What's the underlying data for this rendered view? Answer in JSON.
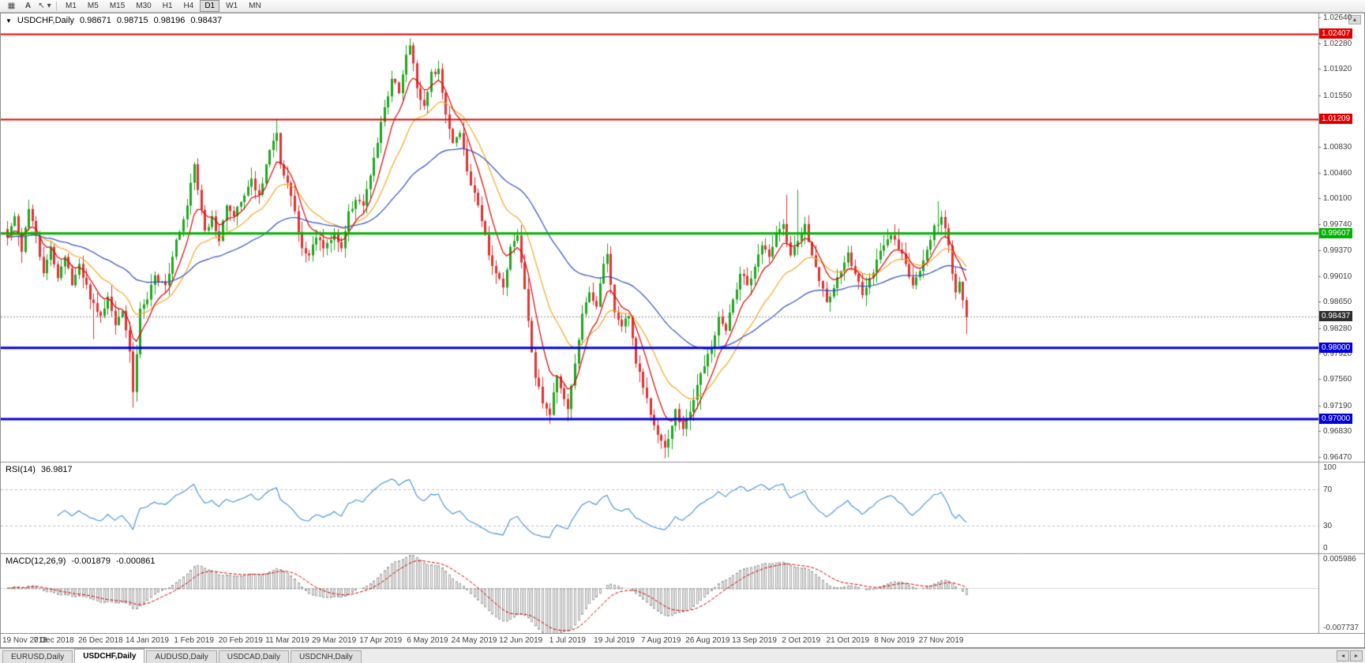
{
  "toolbar": {
    "tools": [
      {
        "name": "market-watch-grid-icon",
        "icon": "▦"
      },
      {
        "name": "text-tool-icon",
        "icon": "A"
      },
      {
        "name": "cursor-tool-icon",
        "icon": "↖",
        "caret": "▾"
      }
    ],
    "timeframes": [
      "M1",
      "M5",
      "M15",
      "M30",
      "H1",
      "H4",
      "D1",
      "W1",
      "MN"
    ],
    "active_timeframe": "D1"
  },
  "chart_header": {
    "collapse_icon": "▼",
    "symbol": "USDCHF,Daily",
    "open": "0.98671",
    "high": "0.98715",
    "low": "0.98196",
    "close": "0.98437"
  },
  "price_axis": {
    "ticks": [
      "1.02640",
      "1.02280",
      "1.01920",
      "1.01550",
      "1.01190",
      "1.00830",
      "1.00460",
      "1.00100",
      "0.99740",
      "0.99370",
      "0.99010",
      "0.98650",
      "0.98280",
      "0.97920",
      "0.97560",
      "0.97190",
      "0.96830",
      "0.96470"
    ],
    "current_price": "0.98437",
    "current_price_bg": "#2e2e2e"
  },
  "indicators": {
    "rsi": {
      "name": "RSI(14)",
      "value": "36.9817",
      "period": 14,
      "axis_labels": [
        "100",
        "70",
        "30",
        "0"
      ],
      "levels": [
        70,
        30
      ],
      "line_color": "#3e8ede"
    },
    "macd": {
      "name": "MACD(12,26,9)",
      "value_main": "-0.001879",
      "value_signal": "-0.000861",
      "params": [
        12,
        26,
        9
      ],
      "axis_top": "0.005986",
      "axis_bottom": "-0.007737",
      "histogram_color": "#a6a6a6",
      "signal_color": "#d00000"
    }
  },
  "chart_data": {
    "type": "candlestick",
    "title": "USDCHF Daily",
    "ylim": [
      0.964,
      1.027
    ],
    "x_labels": [
      "19 Nov 2018",
      "7 Dec 2018",
      "26 Dec 2018",
      "14 Jan 2019",
      "1 Feb 2019",
      "20 Feb 2019",
      "11 Mar 2019",
      "29 Mar 2019",
      "17 Apr 2019",
      "6 May 2019",
      "24 May 2019",
      "12 Jun 2019",
      "1 Jul 2019",
      "19 Jul 2019",
      "7 Aug 2019",
      "26 Aug 2019",
      "13 Sep 2019",
      "2 Oct 2019",
      "21 Oct 2019",
      "8 Nov 2019",
      "27 Nov 2019"
    ],
    "candles_between_labels": 13,
    "num_candles": 268,
    "close_waypoints": [
      [
        0,
        0.9955
      ],
      [
        2,
        0.9985
      ],
      [
        4,
        0.9935
      ],
      [
        6,
        0.9995
      ],
      [
        8,
        0.9958
      ],
      [
        10,
        0.9905
      ],
      [
        12,
        0.9942
      ],
      [
        14,
        0.9898
      ],
      [
        16,
        0.9928
      ],
      [
        18,
        0.9888
      ],
      [
        20,
        0.9918
      ],
      [
        23,
        0.9868
      ],
      [
        26,
        0.9845
      ],
      [
        28,
        0.9872
      ],
      [
        30,
        0.9832
      ],
      [
        32,
        0.9852
      ],
      [
        34,
        0.9795
      ],
      [
        35,
        0.9738
      ],
      [
        37,
        0.9855
      ],
      [
        39,
        0.9868
      ],
      [
        41,
        0.9902
      ],
      [
        44,
        0.9888
      ],
      [
        47,
        0.9952
      ],
      [
        50,
        1.0
      ],
      [
        52,
        1.0058
      ],
      [
        53,
        1.0022
      ],
      [
        55,
        0.9965
      ],
      [
        57,
        0.9985
      ],
      [
        59,
        0.995
      ],
      [
        61,
        1.0
      ],
      [
        63,
        0.9985
      ],
      [
        65,
        1.0005
      ],
      [
        68,
        1.0038
      ],
      [
        70,
        1.0015
      ],
      [
        73,
        1.0078
      ],
      [
        75,
        1.0102
      ],
      [
        76,
        1.0058
      ],
      [
        78,
        1.0032
      ],
      [
        80,
        0.9992
      ],
      [
        82,
        0.994
      ],
      [
        84,
        0.993
      ],
      [
        86,
        0.9955
      ],
      [
        88,
        0.994
      ],
      [
        91,
        0.9962
      ],
      [
        93,
        0.994
      ],
      [
        95,
        0.9992
      ],
      [
        97,
        1.0008
      ],
      [
        99,
        1.0
      ],
      [
        101,
        1.0042
      ],
      [
        103,
        1.0088
      ],
      [
        105,
        1.0138
      ],
      [
        107,
        1.0178
      ],
      [
        109,
        1.0158
      ],
      [
        111,
        1.0212
      ],
      [
        112,
        1.0225
      ],
      [
        114,
        1.0165
      ],
      [
        116,
        1.014
      ],
      [
        118,
        1.0188
      ],
      [
        120,
        1.0192
      ],
      [
        122,
        1.0128
      ],
      [
        124,
        1.0088
      ],
      [
        126,
        1.0102
      ],
      [
        128,
        1.0048
      ],
      [
        130,
        1.0018
      ],
      [
        132,
        0.9978
      ],
      [
        134,
        0.993
      ],
      [
        136,
        0.9905
      ],
      [
        138,
        0.9885
      ],
      [
        140,
        0.9942
      ],
      [
        142,
        0.9958
      ],
      [
        143,
        0.992
      ],
      [
        145,
        0.9838
      ],
      [
        147,
        0.9758
      ],
      [
        149,
        0.9722
      ],
      [
        151,
        0.9706
      ],
      [
        153,
        0.976
      ],
      [
        155,
        0.9728
      ],
      [
        156,
        0.9714
      ],
      [
        158,
        0.9778
      ],
      [
        160,
        0.9848
      ],
      [
        162,
        0.9878
      ],
      [
        164,
        0.9858
      ],
      [
        166,
        0.9918
      ],
      [
        167,
        0.9932
      ],
      [
        169,
        0.985
      ],
      [
        171,
        0.983
      ],
      [
        173,
        0.9845
      ],
      [
        175,
        0.9778
      ],
      [
        177,
        0.9744
      ],
      [
        179,
        0.9706
      ],
      [
        181,
        0.9678
      ],
      [
        183,
        0.966
      ],
      [
        184,
        0.9672
      ],
      [
        186,
        0.9714
      ],
      [
        188,
        0.9686
      ],
      [
        190,
        0.971
      ],
      [
        192,
        0.9748
      ],
      [
        194,
        0.9774
      ],
      [
        196,
        0.98
      ],
      [
        198,
        0.9844
      ],
      [
        200,
        0.9824
      ],
      [
        202,
        0.9868
      ],
      [
        204,
        0.9904
      ],
      [
        206,
        0.9888
      ],
      [
        208,
        0.9914
      ],
      [
        210,
        0.9944
      ],
      [
        212,
        0.9928
      ],
      [
        214,
        0.9962
      ],
      [
        216,
        0.9974
      ],
      [
        218,
        0.993
      ],
      [
        220,
        0.995
      ],
      [
        222,
        0.9974
      ],
      [
        224,
        0.993
      ],
      [
        226,
        0.9894
      ],
      [
        228,
        0.9864
      ],
      [
        230,
        0.9884
      ],
      [
        232,
        0.9908
      ],
      [
        234,
        0.9934
      ],
      [
        236,
        0.9904
      ],
      [
        238,
        0.9874
      ],
      [
        240,
        0.9898
      ],
      [
        242,
        0.9924
      ],
      [
        244,
        0.9944
      ],
      [
        246,
        0.9958
      ],
      [
        248,
        0.9938
      ],
      [
        250,
        0.9918
      ],
      [
        252,
        0.9888
      ],
      [
        254,
        0.9908
      ],
      [
        256,
        0.9938
      ],
      [
        258,
        0.9972
      ],
      [
        260,
        0.9984
      ],
      [
        261,
        0.9968
      ],
      [
        262,
        0.9944
      ],
      [
        263,
        0.9904
      ],
      [
        264,
        0.9878
      ],
      [
        265,
        0.9893
      ],
      [
        266,
        0.9867
      ],
      [
        267,
        0.98437
      ]
    ],
    "wick_overrides": [
      [
        6,
        "high",
        1.0008
      ],
      [
        24,
        "low",
        0.9812
      ],
      [
        35,
        "low",
        0.9716
      ],
      [
        75,
        "high",
        1.0122
      ],
      [
        112,
        "high",
        1.0235
      ],
      [
        120,
        "high",
        1.02
      ],
      [
        151,
        "low",
        0.9693
      ],
      [
        156,
        "low",
        0.9697
      ],
      [
        184,
        "low",
        0.9646
      ],
      [
        193,
        "low",
        0.9713
      ],
      [
        217,
        "high",
        1.0015
      ],
      [
        220,
        "high",
        1.0022
      ],
      [
        259,
        "high",
        1.0006
      ]
    ],
    "last_candle": {
      "open": 0.98671,
      "high": 0.98715,
      "low": 0.98196,
      "close": 0.98437
    },
    "up_color": "#1fa51f",
    "down_color": "#e03232",
    "moving_averages": [
      {
        "period": 8,
        "color": "#e00000"
      },
      {
        "period": 20,
        "color": "#f5a623"
      },
      {
        "period": 55,
        "color": "#2f4fc0"
      }
    ],
    "levels": [
      {
        "price": 1.02407,
        "label": "1.02407",
        "color": "#e00000",
        "line_width": 2
      },
      {
        "price": 1.01209,
        "label": "1.01209",
        "color": "#e00000",
        "line_width": 2
      },
      {
        "price": 0.99607,
        "label": "0.99607",
        "color": "#00b200",
        "line_width": 3
      },
      {
        "price": 0.98,
        "label": "0.98000",
        "color": "#0000e0",
        "line_width": 3
      },
      {
        "price": 0.97,
        "label": "0.97000",
        "color": "#0000e0",
        "line_width": 3
      }
    ],
    "bid_line": {
      "price": 0.98437,
      "color": "#8a8a8a"
    }
  },
  "tabs": {
    "items": [
      {
        "label": "EURUSD,Daily",
        "active": false
      },
      {
        "label": "USDCHF,Daily",
        "active": true
      },
      {
        "label": "AUDUSD,Daily",
        "active": false
      },
      {
        "label": "USDCAD,Daily",
        "active": false
      },
      {
        "label": "USDCNH,Daily",
        "active": false
      }
    ],
    "scroll_left_icon": "◄",
    "scroll_right_icon": "►"
  },
  "scroll_up_icon": "▲"
}
